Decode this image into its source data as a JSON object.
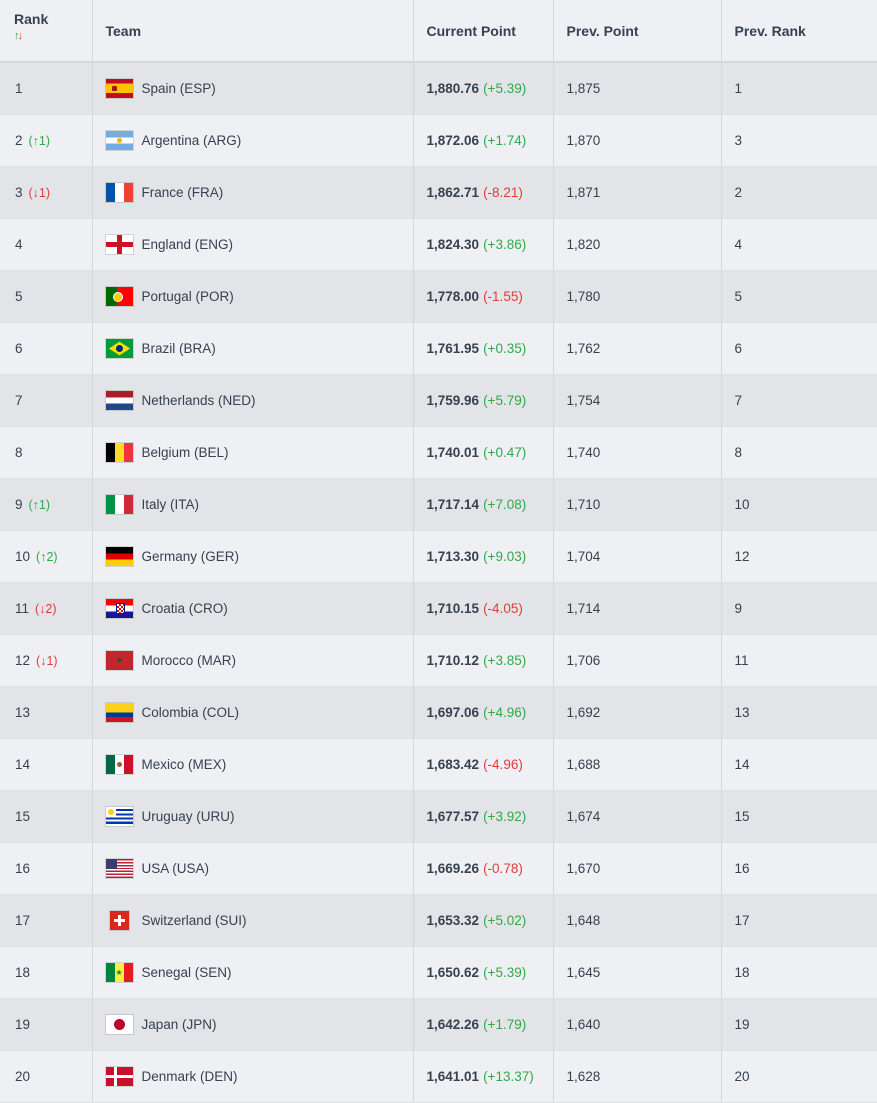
{
  "header": {
    "rank": "Rank",
    "sort_icon": {
      "up": "↑",
      "down": "↓"
    },
    "team": "Team",
    "current_point": "Current Point",
    "prev_point": "Prev. Point",
    "prev_rank": "Prev. Rank"
  },
  "rows": [
    {
      "rank": "1",
      "move": "",
      "move_dir": "",
      "team": "Spain (ESP)",
      "flag": "spain",
      "points": "1,880.76",
      "delta": "(+5.39)",
      "delta_dir": "pos",
      "prev_point": "1,875",
      "prev_rank": "1"
    },
    {
      "rank": "2",
      "move": "(↑1)",
      "move_dir": "up",
      "team": "Argentina (ARG)",
      "flag": "argentina",
      "points": "1,872.06",
      "delta": "(+1.74)",
      "delta_dir": "pos",
      "prev_point": "1,870",
      "prev_rank": "3"
    },
    {
      "rank": "3",
      "move": "(↓1)",
      "move_dir": "down",
      "team": "France (FRA)",
      "flag": "france",
      "points": "1,862.71",
      "delta": "(-8.21)",
      "delta_dir": "neg",
      "prev_point": "1,871",
      "prev_rank": "2"
    },
    {
      "rank": "4",
      "move": "",
      "move_dir": "",
      "team": "England (ENG)",
      "flag": "england",
      "points": "1,824.30",
      "delta": "(+3.86)",
      "delta_dir": "pos",
      "prev_point": "1,820",
      "prev_rank": "4"
    },
    {
      "rank": "5",
      "move": "",
      "move_dir": "",
      "team": "Portugal (POR)",
      "flag": "portugal",
      "points": "1,778.00",
      "delta": "(-1.55)",
      "delta_dir": "neg",
      "prev_point": "1,780",
      "prev_rank": "5"
    },
    {
      "rank": "6",
      "move": "",
      "move_dir": "",
      "team": "Brazil (BRA)",
      "flag": "brazil",
      "points": "1,761.95",
      "delta": "(+0.35)",
      "delta_dir": "pos",
      "prev_point": "1,762",
      "prev_rank": "6"
    },
    {
      "rank": "7",
      "move": "",
      "move_dir": "",
      "team": "Netherlands (NED)",
      "flag": "netherlands",
      "points": "1,759.96",
      "delta": "(+5.79)",
      "delta_dir": "pos",
      "prev_point": "1,754",
      "prev_rank": "7"
    },
    {
      "rank": "8",
      "move": "",
      "move_dir": "",
      "team": "Belgium (BEL)",
      "flag": "belgium",
      "points": "1,740.01",
      "delta": "(+0.47)",
      "delta_dir": "pos",
      "prev_point": "1,740",
      "prev_rank": "8"
    },
    {
      "rank": "9",
      "move": "(↑1)",
      "move_dir": "up",
      "team": "Italy (ITA)",
      "flag": "italy",
      "points": "1,717.14",
      "delta": "(+7.08)",
      "delta_dir": "pos",
      "prev_point": "1,710",
      "prev_rank": "10"
    },
    {
      "rank": "10",
      "move": "(↑2)",
      "move_dir": "up",
      "team": "Germany (GER)",
      "flag": "germany",
      "points": "1,713.30",
      "delta": "(+9.03)",
      "delta_dir": "pos",
      "prev_point": "1,704",
      "prev_rank": "12"
    },
    {
      "rank": "11",
      "move": "(↓2)",
      "move_dir": "down",
      "team": "Croatia (CRO)",
      "flag": "croatia",
      "points": "1,710.15",
      "delta": "(-4.05)",
      "delta_dir": "neg",
      "prev_point": "1,714",
      "prev_rank": "9"
    },
    {
      "rank": "12",
      "move": "(↓1)",
      "move_dir": "down",
      "team": "Morocco (MAR)",
      "flag": "morocco",
      "points": "1,710.12",
      "delta": "(+3.85)",
      "delta_dir": "pos",
      "prev_point": "1,706",
      "prev_rank": "11"
    },
    {
      "rank": "13",
      "move": "",
      "move_dir": "",
      "team": "Colombia (COL)",
      "flag": "colombia",
      "points": "1,697.06",
      "delta": "(+4.96)",
      "delta_dir": "pos",
      "prev_point": "1,692",
      "prev_rank": "13"
    },
    {
      "rank": "14",
      "move": "",
      "move_dir": "",
      "team": "Mexico (MEX)",
      "flag": "mexico",
      "points": "1,683.42",
      "delta": "(-4.96)",
      "delta_dir": "neg",
      "prev_point": "1,688",
      "prev_rank": "14"
    },
    {
      "rank": "15",
      "move": "",
      "move_dir": "",
      "team": "Uruguay (URU)",
      "flag": "uruguay",
      "points": "1,677.57",
      "delta": "(+3.92)",
      "delta_dir": "pos",
      "prev_point": "1,674",
      "prev_rank": "15"
    },
    {
      "rank": "16",
      "move": "",
      "move_dir": "",
      "team": "USA (USA)",
      "flag": "usa",
      "points": "1,669.26",
      "delta": "(-0.78)",
      "delta_dir": "neg",
      "prev_point": "1,670",
      "prev_rank": "16"
    },
    {
      "rank": "17",
      "move": "",
      "move_dir": "",
      "team": "Switzerland (SUI)",
      "flag": "switzerland",
      "points": "1,653.32",
      "delta": "(+5.02)",
      "delta_dir": "pos",
      "prev_point": "1,648",
      "prev_rank": "17"
    },
    {
      "rank": "18",
      "move": "",
      "move_dir": "",
      "team": "Senegal (SEN)",
      "flag": "senegal",
      "points": "1,650.62",
      "delta": "(+5.39)",
      "delta_dir": "pos",
      "prev_point": "1,645",
      "prev_rank": "18"
    },
    {
      "rank": "19",
      "move": "",
      "move_dir": "",
      "team": "Japan (JPN)",
      "flag": "japan",
      "points": "1,642.26",
      "delta": "(+1.79)",
      "delta_dir": "pos",
      "prev_point": "1,640",
      "prev_rank": "19"
    },
    {
      "rank": "20",
      "move": "",
      "move_dir": "",
      "team": "Denmark (DEN)",
      "flag": "denmark",
      "points": "1,641.01",
      "delta": "(+13.37)",
      "delta_dir": "pos",
      "prev_point": "1,628",
      "prev_rank": "20"
    }
  ],
  "colors": {
    "positive": "#2eaa4a",
    "negative": "#e03c3c",
    "text": "#37414f",
    "row_alt": "#e2e4e8",
    "row": "#eef0f3"
  }
}
